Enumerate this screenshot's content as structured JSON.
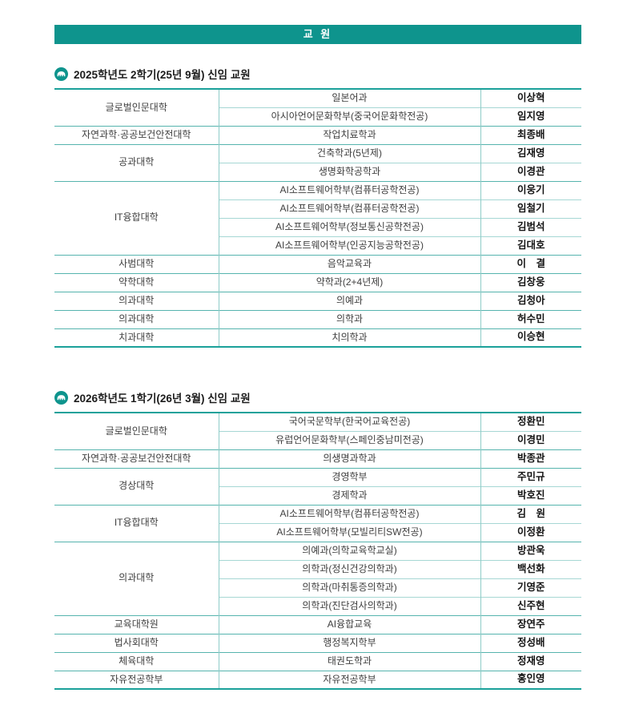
{
  "banner": {
    "title": "교 원"
  },
  "colors": {
    "accent_teal": "#0e948d",
    "table_border": "#1ba19a",
    "group_line": "#56b4ae",
    "sub_line": "#a6d7d4",
    "column_line": "#8fccc8"
  },
  "columns": [
    "college",
    "department",
    "name"
  ],
  "sections": [
    {
      "heading": "2025학년도 2학기(25년 9월) 신임 교원",
      "icon": "university-emblem-icon",
      "groups": [
        {
          "college": "글로벌인문대학",
          "rows": [
            {
              "dept": "일본어과",
              "name": "이상혁"
            },
            {
              "dept": "아시아언어문화학부(중국어문화학전공)",
              "name": "임지영"
            }
          ]
        },
        {
          "college": "자연과학·공공보건안전대학",
          "rows": [
            {
              "dept": "작업치료학과",
              "name": "최종배"
            }
          ]
        },
        {
          "college": "공과대학",
          "rows": [
            {
              "dept": "건축학과(5년제)",
              "name": "김재영"
            },
            {
              "dept": "생명화학공학과",
              "name": "이경관"
            }
          ]
        },
        {
          "college": "IT융합대학",
          "rows": [
            {
              "dept": "AI소프트웨어학부(컴퓨터공학전공)",
              "name": "이웅기"
            },
            {
              "dept": "AI소프트웨어학부(컴퓨터공학전공)",
              "name": "임철기"
            },
            {
              "dept": "AI소프트웨어학부(정보통신공학전공)",
              "name": "김범석"
            },
            {
              "dept": "AI소프트웨어학부(인공지능공학전공)",
              "name": "김대호"
            }
          ]
        },
        {
          "college": "사범대학",
          "rows": [
            {
              "dept": "음악교육과",
              "name": "이　결"
            }
          ]
        },
        {
          "college": "약학대학",
          "rows": [
            {
              "dept": "약학과(2+4년제)",
              "name": "김창웅"
            }
          ]
        },
        {
          "college": "의과대학",
          "rows": [
            {
              "dept": "의예과",
              "name": "김청아"
            }
          ]
        },
        {
          "college": "의과대학",
          "rows": [
            {
              "dept": "의학과",
              "name": "허수민"
            }
          ]
        },
        {
          "college": "치과대학",
          "rows": [
            {
              "dept": "치의학과",
              "name": "이승현"
            }
          ]
        }
      ]
    },
    {
      "heading": "2026학년도 1학기(26년 3월) 신임 교원",
      "icon": "university-emblem-icon",
      "groups": [
        {
          "college": "글로벌인문대학",
          "rows": [
            {
              "dept": "국어국문학부(한국어교육전공)",
              "name": "정환민"
            },
            {
              "dept": "유럽언어문화학부(스페인중남미전공)",
              "name": "이경민"
            }
          ]
        },
        {
          "college": "자연과학·공공보건안전대학",
          "rows": [
            {
              "dept": "의생명과학과",
              "name": "박종관"
            }
          ]
        },
        {
          "college": "경상대학",
          "rows": [
            {
              "dept": "경영학부",
              "name": "주민규"
            },
            {
              "dept": "경제학과",
              "name": "박호진"
            }
          ]
        },
        {
          "college": "IT융합대학",
          "rows": [
            {
              "dept": "AI소프트웨어학부(컴퓨터공학전공)",
              "name": "김　원"
            },
            {
              "dept": "AI소프트웨어학부(모빌리티SW전공)",
              "name": "이정환"
            }
          ]
        },
        {
          "college": "의과대학",
          "rows": [
            {
              "dept": "의예과(의학교육학교실)",
              "name": "방관욱"
            },
            {
              "dept": "의학과(정신건강의학과)",
              "name": "백선화"
            },
            {
              "dept": "의학과(마취통증의학과)",
              "name": "기영준"
            },
            {
              "dept": "의학과(진단검사의학과)",
              "name": "신주현"
            }
          ]
        },
        {
          "college": "교육대학원",
          "rows": [
            {
              "dept": "AI융합교육",
              "name": "장연주"
            }
          ]
        },
        {
          "college": "법사회대학",
          "rows": [
            {
              "dept": "행정복지학부",
              "name": "정성배"
            }
          ]
        },
        {
          "college": "체육대학",
          "rows": [
            {
              "dept": "태권도학과",
              "name": "정재영"
            }
          ]
        },
        {
          "college": "자유전공학부",
          "rows": [
            {
              "dept": "자유전공학부",
              "name": "홍인영"
            }
          ]
        }
      ]
    }
  ]
}
